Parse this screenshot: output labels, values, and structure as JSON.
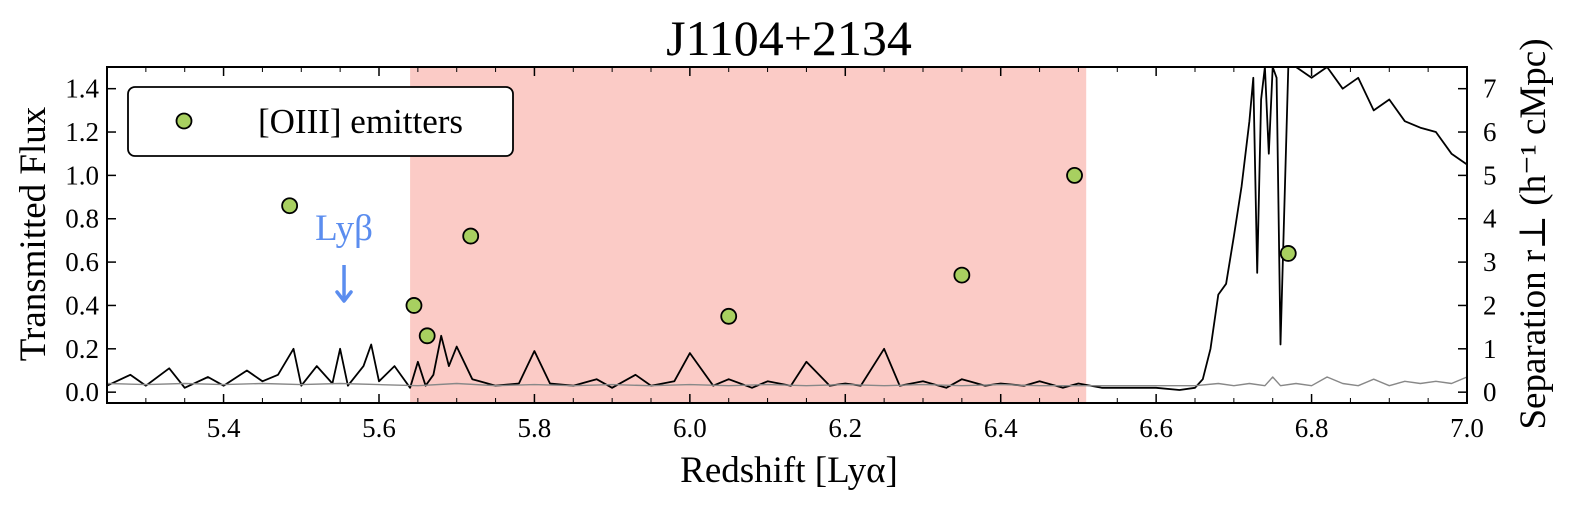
{
  "chart_data": {
    "type": "line",
    "title": "J1104+2134",
    "xlabel": "Redshift [Lyα]",
    "ylabel": "Transmitted Flux",
    "y2label": "Separation r⊥ (h⁻¹ cMpc)",
    "xlim": [
      5.25,
      7.0
    ],
    "ylim": [
      -0.05,
      1.5
    ],
    "y2lim": [
      -0.25,
      7.5
    ],
    "xticks": [
      5.4,
      5.6,
      5.8,
      6.0,
      6.2,
      6.4,
      6.6,
      6.8,
      7.0
    ],
    "xtick_labels": [
      "5.4",
      "5.6",
      "5.8",
      "6.0",
      "6.2",
      "6.4",
      "6.6",
      "6.8",
      "7.0"
    ],
    "yticks": [
      0.0,
      0.2,
      0.4,
      0.6,
      0.8,
      1.0,
      1.2,
      1.4
    ],
    "ytick_labels": [
      "0.0",
      "0.2",
      "0.4",
      "0.6",
      "0.8",
      "1.0",
      "1.2",
      "1.4"
    ],
    "y2ticks": [
      0,
      1,
      2,
      3,
      4,
      5,
      6,
      7
    ],
    "y2tick_labels": [
      "0",
      "1",
      "2",
      "3",
      "4",
      "5",
      "6",
      "7"
    ],
    "shaded_region": {
      "x": [
        5.64,
        6.51
      ],
      "color": "#f8a8a0"
    },
    "series": [
      {
        "type": "line",
        "color": "#000000",
        "x": [
          5.25,
          5.28,
          5.3,
          5.33,
          5.35,
          5.38,
          5.4,
          5.43,
          5.45,
          5.47,
          5.49,
          5.5,
          5.52,
          5.54,
          5.55,
          5.56,
          5.58,
          5.59,
          5.6,
          5.62,
          5.63,
          5.64,
          5.65,
          5.66,
          5.67,
          5.68,
          5.69,
          5.7,
          5.72,
          5.75,
          5.78,
          5.8,
          5.82,
          5.85,
          5.88,
          5.9,
          5.93,
          5.95,
          5.98,
          6.0,
          6.03,
          6.05,
          6.08,
          6.1,
          6.13,
          6.15,
          6.18,
          6.2,
          6.22,
          6.25,
          6.27,
          6.3,
          6.33,
          6.35,
          6.38,
          6.4,
          6.43,
          6.45,
          6.48,
          6.5,
          6.53,
          6.56,
          6.6,
          6.63,
          6.65,
          6.66,
          6.67,
          6.68,
          6.69,
          6.7,
          6.71,
          6.72,
          6.725,
          6.73,
          6.735,
          6.74,
          6.745,
          6.75,
          6.755,
          6.76,
          6.77,
          6.78,
          6.8,
          6.82,
          6.84,
          6.86,
          6.88,
          6.9,
          6.92,
          6.94,
          6.96,
          6.98,
          7.0
        ],
        "y": [
          0.03,
          0.08,
          0.03,
          0.11,
          0.02,
          0.07,
          0.03,
          0.1,
          0.05,
          0.08,
          0.2,
          0.03,
          0.12,
          0.04,
          0.2,
          0.03,
          0.12,
          0.22,
          0.05,
          0.12,
          0.07,
          0.02,
          0.14,
          0.03,
          0.08,
          0.26,
          0.12,
          0.21,
          0.06,
          0.03,
          0.04,
          0.19,
          0.04,
          0.03,
          0.06,
          0.02,
          0.08,
          0.03,
          0.05,
          0.18,
          0.03,
          0.06,
          0.02,
          0.05,
          0.03,
          0.14,
          0.03,
          0.04,
          0.03,
          0.2,
          0.03,
          0.05,
          0.02,
          0.06,
          0.03,
          0.04,
          0.03,
          0.05,
          0.02,
          0.04,
          0.02,
          0.02,
          0.02,
          0.01,
          0.02,
          0.06,
          0.2,
          0.45,
          0.5,
          0.72,
          0.95,
          1.25,
          1.45,
          0.55,
          1.35,
          1.5,
          1.1,
          1.5,
          1.45,
          0.22,
          1.5,
          1.5,
          1.45,
          1.5,
          1.4,
          1.45,
          1.3,
          1.35,
          1.25,
          1.22,
          1.2,
          1.1,
          1.05
        ]
      },
      {
        "type": "line",
        "color": "#888888",
        "x": [
          5.25,
          5.3,
          5.35,
          5.4,
          5.45,
          5.5,
          5.55,
          5.6,
          5.65,
          5.7,
          5.75,
          5.8,
          5.85,
          5.9,
          5.95,
          6.0,
          6.05,
          6.1,
          6.15,
          6.2,
          6.25,
          6.3,
          6.35,
          6.4,
          6.45,
          6.5,
          6.55,
          6.6,
          6.65,
          6.68,
          6.7,
          6.72,
          6.74,
          6.75,
          6.76,
          6.78,
          6.8,
          6.82,
          6.84,
          6.86,
          6.88,
          6.9,
          6.92,
          6.94,
          6.96,
          6.98,
          7.0
        ],
        "y": [
          0.04,
          0.035,
          0.04,
          0.035,
          0.04,
          0.035,
          0.04,
          0.035,
          0.03,
          0.04,
          0.03,
          0.035,
          0.03,
          0.035,
          0.03,
          0.035,
          0.03,
          0.035,
          0.03,
          0.035,
          0.03,
          0.035,
          0.03,
          0.035,
          0.03,
          0.03,
          0.03,
          0.03,
          0.03,
          0.04,
          0.03,
          0.04,
          0.03,
          0.07,
          0.03,
          0.04,
          0.03,
          0.07,
          0.04,
          0.03,
          0.06,
          0.03,
          0.05,
          0.04,
          0.05,
          0.04,
          0.07
        ]
      },
      {
        "type": "scatter",
        "name": "[OIII] emitters",
        "axis": "right",
        "color": "#a8d060",
        "x": [
          5.485,
          5.645,
          5.662,
          5.718,
          6.05,
          6.35,
          6.495,
          6.77
        ],
        "y": [
          4.3,
          2.0,
          1.3,
          3.6,
          1.75,
          2.7,
          5.0,
          3.2
        ]
      }
    ],
    "legend": {
      "position": "top-left",
      "entries": [
        "[OIII] emitters"
      ]
    },
    "annotation": {
      "text": "Lyβ",
      "x": 5.555,
      "color": "#5b8def"
    },
    "grid": false
  }
}
